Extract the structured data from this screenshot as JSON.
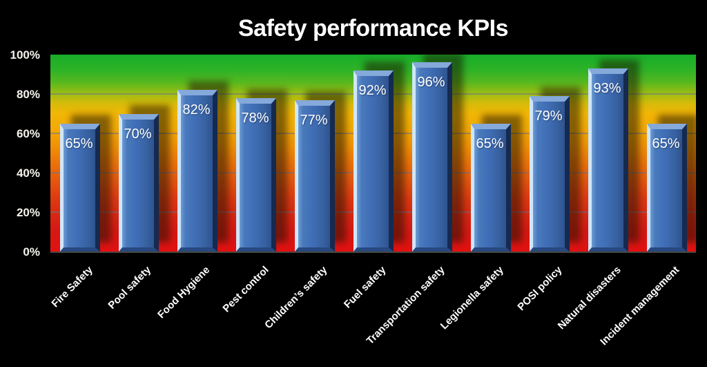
{
  "title": "Safety performance KPIs",
  "chart_data": {
    "type": "bar",
    "title": "Safety performance KPIs",
    "categories": [
      "Fire Safety",
      "Pool safety",
      "Food Hygiene",
      "Pest control",
      "Children’s safety",
      "Fuel safety",
      "Transportation safety",
      "Legionella safety",
      "POSI policy",
      "Natural disasters",
      "Incident management"
    ],
    "values": [
      65,
      70,
      82,
      78,
      77,
      92,
      96,
      65,
      79,
      93,
      65
    ],
    "value_label_format": "{v}%",
    "y_ticks": [
      0,
      20,
      40,
      60,
      80,
      100
    ],
    "y_tick_labels": [
      "0%",
      "20%",
      "40%",
      "60%",
      "80%",
      "100%"
    ],
    "ylim": [
      0,
      100
    ],
    "xlabel": "",
    "ylabel": "",
    "grid": true,
    "legend": false,
    "x_tick_rotation_deg": 45,
    "colors": {
      "background": "#000000",
      "bar_face": "#3E6CB4",
      "bar_highlight": "#CFE6FA",
      "bar_dark_edge": "#152A50",
      "value_label_text": "#FFFFFF",
      "axis_label_text": "#F6F4EE",
      "plot_gradient_top": "#17AD29",
      "plot_gradient_middle": "#F2B606",
      "plot_gradient_bottom": "#E21111"
    }
  }
}
